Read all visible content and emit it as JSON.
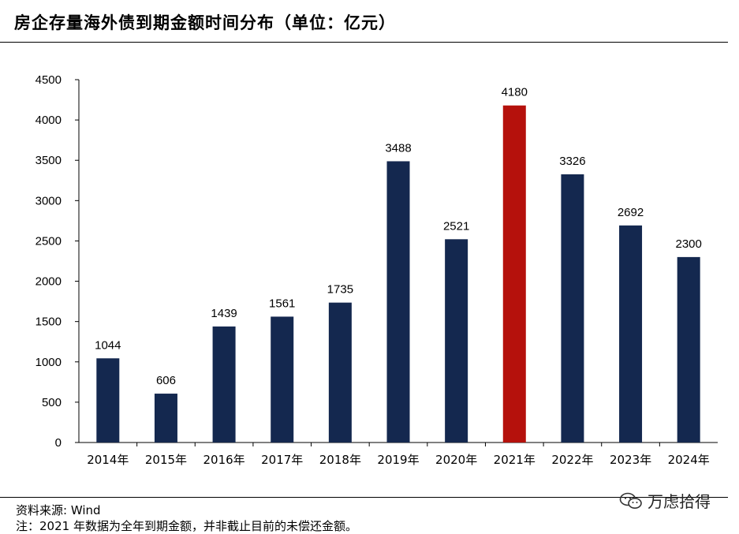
{
  "header": {
    "title": "房企存量海外债到期金额时间分布（单位：亿元）"
  },
  "chart_data": {
    "type": "bar",
    "categories": [
      "2014年",
      "2015年",
      "2016年",
      "2017年",
      "2018年",
      "2019年",
      "2020年",
      "2021年",
      "2022年",
      "2023年",
      "2024年"
    ],
    "values": [
      1044,
      606,
      1439,
      1561,
      1735,
      3488,
      2521,
      4180,
      3326,
      2692,
      2300
    ],
    "ylim": [
      0,
      4500
    ],
    "yticks": [
      0,
      500,
      1000,
      1500,
      2000,
      2500,
      3000,
      3500,
      4000,
      4500
    ],
    "grid": false,
    "legend": "none",
    "colors": {
      "bar": "#14284F",
      "highlight": "#B5110C",
      "axis": "#000000"
    },
    "highlight_index": 7,
    "data_labels": true
  },
  "footer": {
    "source": "资料来源: Wind",
    "note": "注：2021 年数据为全年到期金额，并非截止目前的未偿还金额。"
  },
  "watermark": {
    "icon": "wechat-icon",
    "text": "万虑拾得"
  }
}
